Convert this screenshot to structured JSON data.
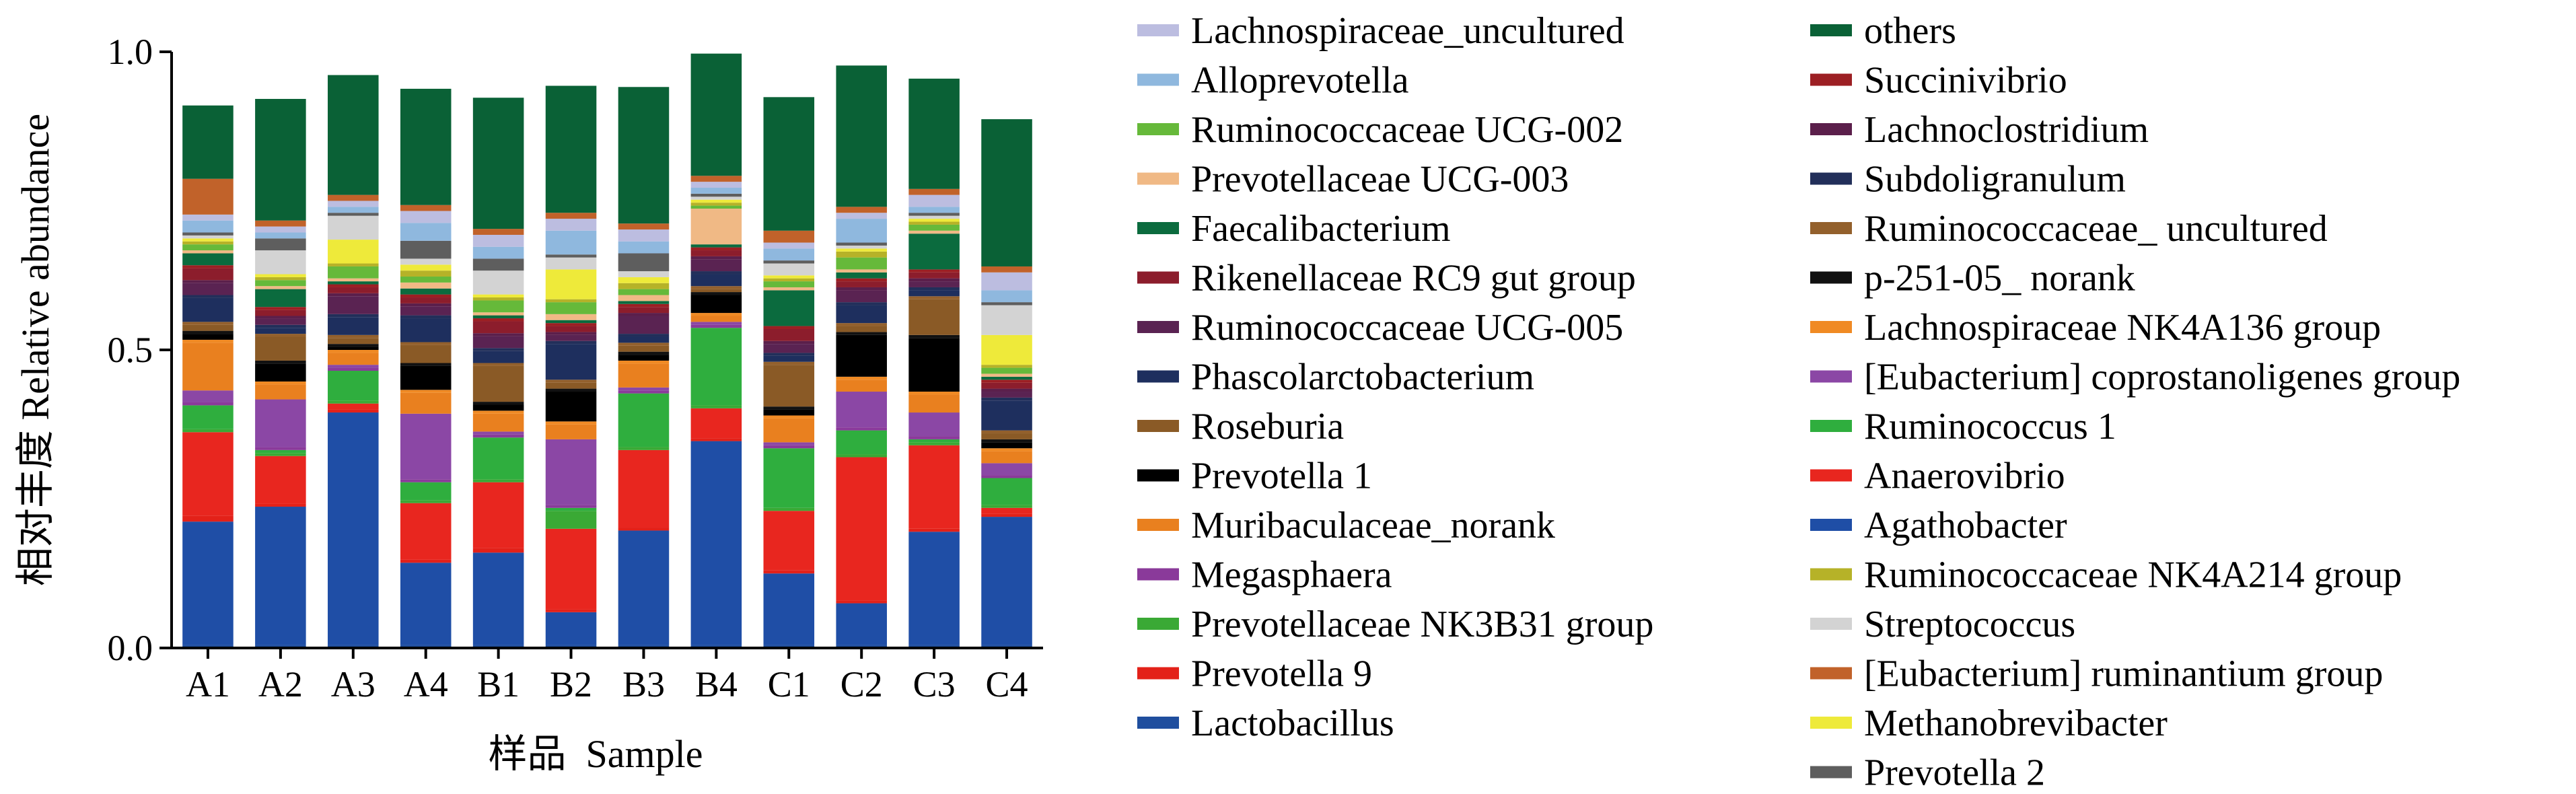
{
  "chart_data": {
    "type": "bar",
    "stacked": true,
    "xlabel": "样品  Sample",
    "ylabel": "相对丰度  Relative abundance",
    "ylim": [
      0,
      1.0
    ],
    "yticks": [
      "0.0",
      "0.5",
      "1.0"
    ],
    "ytick_values": [
      0,
      0.5,
      1.0
    ],
    "legend_placement": "right",
    "categories": [
      "A1",
      "A2",
      "A3",
      "A4",
      "B1",
      "B2",
      "B3",
      "B4",
      "C1",
      "C2",
      "C3",
      "C4"
    ],
    "series": [
      {
        "name": "Lactobacillus",
        "color": "#1f4e9e",
        "values": [
          0.005,
          0.005,
          0.005,
          0.005,
          0.005,
          0.005,
          0.005,
          0.005,
          0.005,
          0.005,
          0.005,
          0.005
        ]
      },
      {
        "name": "Agathobacter",
        "color": "#1f4ea6",
        "values": [
          0.207,
          0.232,
          0.39,
          0.138,
          0.155,
          0.055,
          0.192,
          0.342,
          0.12,
          0.07,
          0.19,
          0.215
        ]
      },
      {
        "name": "Prevotella 9",
        "color": "#e32119",
        "values": [
          0.01,
          0.005,
          0.005,
          0.005,
          0.008,
          0.005,
          0.005,
          0.005,
          0.005,
          0.005,
          0.005,
          0.005
        ]
      },
      {
        "name": "Anaerovibrio",
        "color": "#e8261f",
        "values": [
          0.14,
          0.08,
          0.01,
          0.095,
          0.11,
          0.135,
          0.13,
          0.05,
          0.1,
          0.24,
          0.14,
          0.01
        ]
      },
      {
        "name": "Prevotellaceae NK3B31 group",
        "color": "#3aa935",
        "values": [
          0.005,
          0.005,
          0.005,
          0.005,
          0.005,
          0.03,
          0.005,
          0.005,
          0.005,
          0.005,
          0.005,
          0.005
        ]
      },
      {
        "name": "Ruminococcus 1",
        "color": "#2fae3e",
        "values": [
          0.04,
          0.005,
          0.05,
          0.03,
          0.07,
          0.005,
          0.09,
          0.13,
          0.1,
          0.04,
          0.005,
          0.045
        ]
      },
      {
        "name": "Megasphaera",
        "color": "#8a3a9a",
        "values": [
          0.005,
          0.005,
          0.005,
          0.005,
          0.005,
          0.005,
          0.005,
          0.005,
          0.005,
          0.005,
          0.005,
          0.005
        ]
      },
      {
        "name": "[Eubacterium] coprostanoligenes group",
        "color": "#8b47a5",
        "values": [
          0.02,
          0.08,
          0.005,
          0.11,
          0.005,
          0.11,
          0.005,
          0.005,
          0.005,
          0.06,
          0.04,
          0.02
        ]
      },
      {
        "name": "Muribaculaceae_norank",
        "color": "#e9801f",
        "values": [
          0.08,
          0.025,
          0.02,
          0.035,
          0.03,
          0.025,
          0.04,
          0.01,
          0.04,
          0.02,
          0.03,
          0.02
        ]
      },
      {
        "name": "Lachnospiraceae NK4A136 group",
        "color": "#f08a24",
        "values": [
          0.005,
          0.005,
          0.005,
          0.005,
          0.005,
          0.005,
          0.005,
          0.005,
          0.005,
          0.005,
          0.005,
          0.005
        ]
      },
      {
        "name": "Prevotella 1",
        "color": "#000000",
        "values": [
          0.01,
          0.03,
          0.005,
          0.04,
          0.01,
          0.05,
          0.01,
          0.03,
          0.01,
          0.07,
          0.09,
          0.01
        ]
      },
      {
        "name": "p-251-05_ norank",
        "color": "#111111",
        "values": [
          0.005,
          0.005,
          0.005,
          0.005,
          0.005,
          0.005,
          0.005,
          0.005,
          0.005,
          0.005,
          0.005,
          0.005
        ]
      },
      {
        "name": "Roseburia",
        "color": "#8a5a26",
        "values": [
          0.01,
          0.04,
          0.01,
          0.03,
          0.06,
          0.01,
          0.01,
          0.005,
          0.07,
          0.01,
          0.06,
          0.01
        ]
      },
      {
        "name": "Ruminococcaceae_ uncultured",
        "color": "#93602c",
        "values": [
          0.005,
          0.005,
          0.005,
          0.005,
          0.005,
          0.005,
          0.005,
          0.005,
          0.005,
          0.005,
          0.005,
          0.005
        ]
      },
      {
        "name": "Phascolarctobacterium",
        "color": "#1e2f5e",
        "values": [
          0.04,
          0.01,
          0.03,
          0.04,
          0.02,
          0.06,
          0.01,
          0.02,
          0.01,
          0.03,
          0.01,
          0.05
        ]
      },
      {
        "name": "Subdoligranulum",
        "color": "#222f5a",
        "values": [
          0.005,
          0.005,
          0.005,
          0.005,
          0.005,
          0.005,
          0.005,
          0.005,
          0.005,
          0.005,
          0.005,
          0.005
        ]
      },
      {
        "name": "Ruminococcaceae UCG-005",
        "color": "#5a2352",
        "values": [
          0.02,
          0.01,
          0.03,
          0.015,
          0.02,
          0.01,
          0.03,
          0.02,
          0.015,
          0.02,
          0.01,
          0.01
        ]
      },
      {
        "name": "Lachnoclostridium",
        "color": "#5b1f4b",
        "values": [
          0.005,
          0.005,
          0.005,
          0.005,
          0.005,
          0.005,
          0.005,
          0.005,
          0.005,
          0.005,
          0.005,
          0.005
        ]
      },
      {
        "name": "Rikenellaceae RC9 gut group",
        "color": "#8c1d2c",
        "values": [
          0.02,
          0.01,
          0.01,
          0.01,
          0.02,
          0.01,
          0.01,
          0.01,
          0.02,
          0.01,
          0.01,
          0.01
        ]
      },
      {
        "name": "Succinivibrio",
        "color": "#9c1f23",
        "values": [
          0.005,
          0.005,
          0.005,
          0.005,
          0.005,
          0.005,
          0.005,
          0.005,
          0.005,
          0.005,
          0.005,
          0.005
        ]
      },
      {
        "name": "Faecalibacterium",
        "color": "#0b6b3e",
        "values": [
          0.02,
          0.03,
          0.005,
          0.01,
          0.005,
          0.005,
          0.005,
          0.005,
          0.06,
          0.01,
          0.06,
          0.005
        ]
      },
      {
        "name": "Prevotellaceae UCG-003",
        "color": "#f0b985",
        "values": [
          0.005,
          0.005,
          0.005,
          0.01,
          0.005,
          0.01,
          0.01,
          0.06,
          0.005,
          0.005,
          0.005,
          0.005
        ]
      },
      {
        "name": "Ruminococcaceae UCG-002",
        "color": "#66b93a",
        "values": [
          0.01,
          0.01,
          0.02,
          0.01,
          0.02,
          0.02,
          0.01,
          0.005,
          0.01,
          0.02,
          0.01,
          0.01
        ]
      },
      {
        "name": "Ruminococcaceae NK4A214 group",
        "color": "#b6b228",
        "values": [
          0.005,
          0.005,
          0.005,
          0.01,
          0.005,
          0.005,
          0.01,
          0.005,
          0.005,
          0.01,
          0.005,
          0.005
        ]
      },
      {
        "name": "Methanobrevibacter",
        "color": "#eeea3a",
        "values": [
          0.005,
          0.005,
          0.04,
          0.01,
          0.005,
          0.05,
          0.01,
          0.005,
          0.005,
          0.005,
          0.005,
          0.05
        ]
      },
      {
        "name": "Streptococcus",
        "color": "#d3d3d3",
        "values": [
          0.005,
          0.04,
          0.04,
          0.01,
          0.04,
          0.02,
          0.01,
          0.005,
          0.02,
          0.005,
          0.005,
          0.05
        ]
      },
      {
        "name": "Prevotella 2",
        "color": "#5e5e5e",
        "values": [
          0.005,
          0.02,
          0.005,
          0.03,
          0.02,
          0.005,
          0.03,
          0.005,
          0.005,
          0.005,
          0.005,
          0.005
        ]
      },
      {
        "name": "Alloprevotella",
        "color": "#8fb8de",
        "values": [
          0.02,
          0.01,
          0.01,
          0.03,
          0.02,
          0.04,
          0.02,
          0.01,
          0.02,
          0.04,
          0.01,
          0.02
        ]
      },
      {
        "name": "Lachnospiraceae_uncultured",
        "color": "#bcbde0",
        "values": [
          0.01,
          0.01,
          0.01,
          0.02,
          0.02,
          0.02,
          0.02,
          0.01,
          0.01,
          0.01,
          0.02,
          0.03
        ]
      },
      {
        "name": "[Eubacterium] ruminantium group",
        "color": "#c1622a",
        "values": [
          0.06,
          0.01,
          0.01,
          0.01,
          0.01,
          0.01,
          0.01,
          0.01,
          0.02,
          0.01,
          0.01,
          0.01
        ]
      },
      {
        "name": "others",
        "color": "#0a6136",
        "values": [
          0.123,
          0.204,
          0.201,
          0.195,
          0.22,
          0.213,
          0.229,
          0.205,
          0.224,
          0.237,
          0.185,
          0.247
        ]
      }
    ],
    "legend_columns": [
      [
        "Lachnospiraceae_uncultured",
        "Alloprevotella",
        "Ruminococcaceae UCG-002",
        "Prevotellaceae UCG-003",
        "Faecalibacterium",
        "Rikenellaceae RC9 gut group",
        "Ruminococcaceae UCG-005",
        "Phascolarctobacterium",
        "Roseburia",
        "Prevotella 1",
        "Muribaculaceae_norank",
        "Megasphaera",
        "Prevotellaceae NK3B31 group",
        "Prevotella 9",
        "Lactobacillus"
      ],
      [
        "others",
        "Succinivibrio",
        "Lachnoclostridium",
        "Subdoligranulum",
        "Ruminococcaceae_ uncultured",
        "p-251-05_ norank",
        "Lachnospiraceae NK4A136 group",
        "[Eubacterium] coprostanoligenes group",
        "Ruminococcus 1",
        "Anaerovibrio",
        "Agathobacter",
        "Ruminococcaceae NK4A214 group",
        "Streptococcus",
        "[Eubacterium] ruminantium group",
        "Methanobrevibacter",
        "Prevotella 2"
      ]
    ]
  }
}
